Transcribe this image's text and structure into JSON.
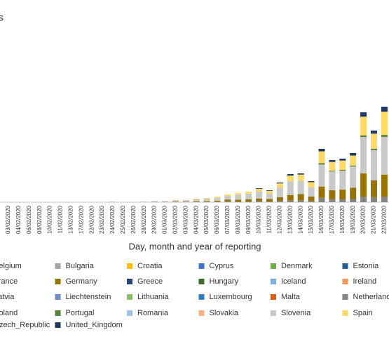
{
  "chart_data": {
    "type": "stacked_bar",
    "title": "s",
    "x_label": "Day, month and year of reporting",
    "categories": [
      "03/02/2020",
      "04/02/2020",
      "06/02/2020",
      "08/02/2020",
      "10/02/2020",
      "11/02/2020",
      "13/02/2020",
      "17/02/2020",
      "22/02/2020",
      "23/02/2020",
      "24/02/2020",
      "25/02/2020",
      "26/02/2020",
      "28/02/2020",
      "29/02/2020",
      "01/03/2020",
      "02/03/2020",
      "03/03/2020",
      "04/03/2020",
      "05/03/2020",
      "06/03/2020",
      "07/03/2020",
      "08/03/2020",
      "09/03/2020",
      "10/03/2020",
      "11/03/2020",
      "12/03/2020",
      "13/03/2020",
      "14/03/2020",
      "15/03/2020",
      "16/03/2020",
      "17/03/2020",
      "18/03/2020",
      "19/03/2020",
      "20/03/2020",
      "21/03/2020",
      "22/03/2020"
    ],
    "ylim": [
      0,
      30000
    ],
    "series": [
      {
        "name": "Netherlands",
        "color": "#848484",
        "values": [
          0,
          0,
          0,
          0,
          0,
          0,
          0,
          0,
          0,
          0,
          0,
          0,
          0,
          0,
          0,
          0,
          0,
          0,
          0,
          0,
          0,
          132,
          106,
          130,
          140,
          104,
          200,
          250,
          300,
          200,
          700,
          500,
          500,
          500,
          900,
          800,
          900
        ]
      },
      {
        "name": "Germany",
        "color": "#997300",
        "values": [
          0,
          0,
          0,
          0,
          0,
          0,
          0,
          0,
          0,
          0,
          0,
          0,
          0,
          0,
          0,
          0,
          86,
          86,
          120,
          150,
          200,
          300,
          300,
          350,
          450,
          400,
          600,
          900,
          1000,
          700,
          1800,
          1400,
          1500,
          1800,
          3700,
          2700,
          3500
        ]
      },
      {
        "name": "Slovenia",
        "color": "#c9c9c9",
        "values": [
          0,
          0,
          0,
          0,
          0,
          0,
          0,
          0,
          0,
          0,
          112,
          0,
          0,
          112,
          224,
          224,
          250,
          250,
          350,
          400,
          500,
          600,
          800,
          900,
          1100,
          900,
          1500,
          2200,
          2100,
          1500,
          3500,
          3000,
          3000,
          3400,
          5800,
          4800,
          6000
        ]
      },
      {
        "name": "Portugal",
        "color": "#548235",
        "values": [
          0,
          0,
          0,
          0,
          0,
          0,
          0,
          0,
          0,
          0,
          0,
          0,
          0,
          0,
          0,
          0,
          0,
          0,
          0,
          0,
          0,
          0,
          0,
          0,
          0,
          0,
          0,
          0,
          0,
          0,
          212,
          120,
          144,
          140,
          236,
          224,
          332
        ]
      },
      {
        "name": "Spain",
        "color": "#ffd966",
        "values": [
          0,
          0,
          0,
          0,
          0,
          0,
          0,
          0,
          0,
          0,
          0,
          0,
          0,
          0,
          0,
          0,
          0,
          0,
          90,
          122,
          196,
          200,
          250,
          300,
          450,
          400,
          700,
          900,
          1000,
          800,
          1900,
          1400,
          1500,
          1600,
          3000,
          2400,
          3700
        ]
      },
      {
        "name": "United_Kingdom",
        "color": "#1f3864",
        "values": [
          0,
          0,
          0,
          0,
          0,
          0,
          0,
          0,
          0,
          0,
          0,
          0,
          0,
          0,
          0,
          0,
          0,
          0,
          0,
          0,
          0,
          0,
          0,
          0,
          100,
          100,
          136,
          230,
          192,
          160,
          400,
          300,
          300,
          400,
          700,
          500,
          800
        ]
      }
    ],
    "legend": [
      {
        "name": "Belgium",
        "color": "#264478"
      },
      {
        "name": "Bulgaria",
        "color": "#a5a5a5"
      },
      {
        "name": "Croatia",
        "color": "#ffc000"
      },
      {
        "name": "Cyprus",
        "color": "#4472c4"
      },
      {
        "name": "Denmark",
        "color": "#70ad47"
      },
      {
        "name": "Estonia",
        "color": "#255e91"
      },
      {
        "name": "France",
        "color": "#9e480e"
      },
      {
        "name": "Germany",
        "color": "#997300"
      },
      {
        "name": "Greece",
        "color": "#264478"
      },
      {
        "name": "Hungary",
        "color": "#43682b"
      },
      {
        "name": "Iceland",
        "color": "#7cafdd"
      },
      {
        "name": "Ireland",
        "color": "#f1975a"
      },
      {
        "name": "Latvia",
        "color": "#b7b7b7"
      },
      {
        "name": "Liechtenstein",
        "color": "#698ed0"
      },
      {
        "name": "Lithuania",
        "color": "#8cc168"
      },
      {
        "name": "Luxembourg",
        "color": "#327dc2"
      },
      {
        "name": "Malta",
        "color": "#d26012"
      },
      {
        "name": "Netherlands",
        "color": "#848484"
      },
      {
        "name": "Poland",
        "color": "#636363"
      },
      {
        "name": "Portugal",
        "color": "#548235"
      },
      {
        "name": "Romania",
        "color": "#9dc3e6"
      },
      {
        "name": "Slovakia",
        "color": "#f4b183"
      },
      {
        "name": "Slovenia",
        "color": "#c9c9c9"
      },
      {
        "name": "Spain",
        "color": "#ffd966"
      },
      {
        "name": "Czech_Republic",
        "color": "#8497b0"
      },
      {
        "name": "United_Kingdom",
        "color": "#1f3864"
      }
    ]
  }
}
